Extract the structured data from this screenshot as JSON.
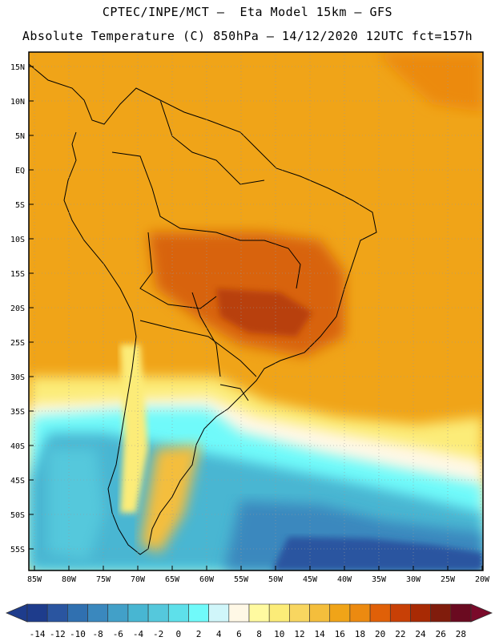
{
  "header": {
    "line1": "CPTEC/INPE/MCT –  Eta Model 15km – GFS",
    "line2": "Absolute Temperature (C) 850hPa – 14/12/2020 12UTC fct=157h"
  },
  "map": {
    "lat_labels": [
      "15N",
      "10N",
      "5N",
      "EQ",
      "5S",
      "10S",
      "15S",
      "20S",
      "25S",
      "30S",
      "35S",
      "40S",
      "45S",
      "50S",
      "55S"
    ],
    "lon_labels": [
      "85W",
      "80W",
      "75W",
      "70W",
      "65W",
      "60W",
      "55W",
      "50W",
      "45W",
      "40W",
      "35W",
      "30W",
      "25W",
      "20W"
    ]
  },
  "colorbar": {
    "labels": [
      "-14",
      "-12",
      "-10",
      "-8",
      "-6",
      "-4",
      "-2",
      "0",
      "2",
      "4",
      "6",
      "8",
      "10",
      "12",
      "14",
      "16",
      "18",
      "20",
      "22",
      "24",
      "26",
      "28"
    ],
    "colors": [
      "#1e3c8c",
      "#2a55a0",
      "#3070b0",
      "#3a88be",
      "#42a0c8",
      "#48b6d2",
      "#55c8dc",
      "#5ee0ea",
      "#70fafa",
      "#d0f6fa",
      "#fff8e6",
      "#fffaa0",
      "#fcec78",
      "#f8d660",
      "#f4be3c",
      "#f0a418",
      "#ec8a10",
      "#e06008",
      "#c84006",
      "#a82a04",
      "#801c0c",
      "#6a0a20"
    ],
    "under_color": "#1e3c8c",
    "over_color": "#7a0a2a"
  },
  "colors": {
    "warm_base": "#f0a418",
    "hot": "#d8640a",
    "ocean_cold": "#42a0c8",
    "coast": "#000000"
  }
}
